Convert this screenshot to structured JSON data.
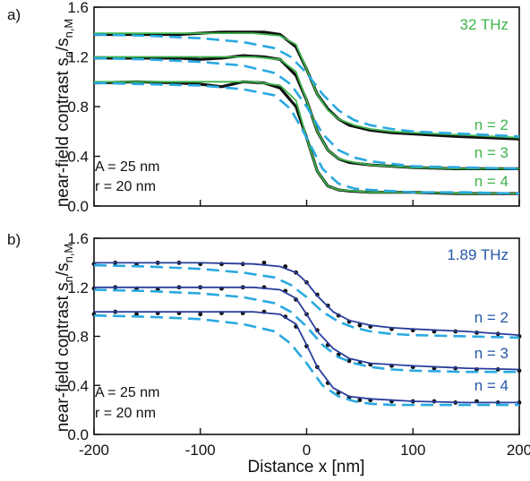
{
  "colors": {
    "panel_a_accent": "#3db54a",
    "panel_b_accent": "#2557a7",
    "dashed_model": "#29a9e0",
    "solid_model_a": "#3db54a",
    "solid_model_b": "#2a3d9a",
    "data_points": "#111111"
  },
  "chart_data": [
    {
      "type": "line",
      "panel_label": "a)",
      "ylabel": "near-field contrast s",
      "ylabel_sub1": "n",
      "ylabel_mid": "/s",
      "ylabel_sub2": "n,M",
      "xlabel": "",
      "xlim": [
        -200,
        200
      ],
      "ylim": [
        0.0,
        1.6
      ],
      "yticks": [
        0.0,
        0.4,
        0.8,
        1.2,
        1.6
      ],
      "ytick_labels": [
        "0.0",
        "0.4",
        "0.8",
        "1.2",
        "1.6"
      ],
      "xticks": [
        -200,
        -100,
        0,
        100,
        200
      ],
      "xtick_labels": [
        "",
        "",
        "",
        "",
        ""
      ],
      "frequency_label": "32 THz",
      "annotations": [
        "A = 25 nm",
        "r = 20 nm"
      ],
      "grid": false,
      "markers": "dense line-like measurement trace",
      "series": [
        {
          "name": "n = 2",
          "data": {
            "x": [
              -200,
              -160,
              -120,
              -100,
              -80,
              -60,
              -40,
              -25,
              -10,
              0,
              10,
              20,
              30,
              40,
              60,
              80,
              100,
              140,
              200
            ],
            "y": [
              1.38,
              1.38,
              1.38,
              1.39,
              1.4,
              1.4,
              1.4,
              1.38,
              1.28,
              1.1,
              0.9,
              0.78,
              0.7,
              0.65,
              0.61,
              0.59,
              0.58,
              0.56,
              0.54
            ]
          },
          "model_solid": {
            "x": [
              -200,
              -100,
              -50,
              -25,
              -10,
              0,
              10,
              20,
              30,
              45,
              60,
              80,
              100,
              150,
              200
            ],
            "y": [
              1.39,
              1.39,
              1.39,
              1.37,
              1.3,
              1.1,
              0.9,
              0.77,
              0.7,
              0.65,
              0.62,
              0.6,
              0.59,
              0.57,
              0.55
            ]
          },
          "model_dashed": {
            "x": [
              -200,
              -150,
              -100,
              -60,
              -30,
              -15,
              0,
              15,
              30,
              45,
              60,
              80,
              100,
              150,
              200
            ],
            "y": [
              1.38,
              1.37,
              1.35,
              1.32,
              1.27,
              1.2,
              1.07,
              0.9,
              0.77,
              0.69,
              0.65,
              0.62,
              0.6,
              0.58,
              0.56
            ]
          }
        },
        {
          "name": "n = 3",
          "data": {
            "x": [
              -200,
              -160,
              -120,
              -100,
              -80,
              -60,
              -40,
              -25,
              -10,
              0,
              10,
              20,
              30,
              40,
              60,
              80,
              100,
              140,
              200
            ],
            "y": [
              1.19,
              1.19,
              1.19,
              1.18,
              1.19,
              1.21,
              1.2,
              1.18,
              1.05,
              0.85,
              0.6,
              0.45,
              0.38,
              0.35,
              0.33,
              0.32,
              0.31,
              0.3,
              0.3
            ]
          },
          "model_solid": {
            "x": [
              -200,
              -100,
              -50,
              -25,
              -10,
              0,
              10,
              20,
              30,
              45,
              60,
              80,
              100,
              150,
              200
            ],
            "y": [
              1.2,
              1.2,
              1.2,
              1.18,
              1.08,
              0.85,
              0.6,
              0.45,
              0.38,
              0.35,
              0.33,
              0.32,
              0.31,
              0.3,
              0.3
            ]
          },
          "model_dashed": {
            "x": [
              -200,
              -150,
              -100,
              -60,
              -30,
              -15,
              0,
              15,
              30,
              45,
              60,
              80,
              100,
              150,
              200
            ],
            "y": [
              1.19,
              1.18,
              1.16,
              1.13,
              1.07,
              0.98,
              0.8,
              0.58,
              0.45,
              0.39,
              0.36,
              0.34,
              0.32,
              0.31,
              0.3
            ]
          }
        },
        {
          "name": "n = 4",
          "data": {
            "x": [
              -200,
              -160,
              -120,
              -100,
              -80,
              -60,
              -40,
              -25,
              -10,
              0,
              10,
              20,
              30,
              40,
              60,
              80,
              100,
              140,
              200
            ],
            "y": [
              0.99,
              1.0,
              0.99,
              0.98,
              0.96,
              1.0,
              0.99,
              0.95,
              0.8,
              0.55,
              0.28,
              0.16,
              0.13,
              0.12,
              0.11,
              0.11,
              0.11,
              0.1,
              0.1
            ]
          },
          "model_solid": {
            "x": [
              -200,
              -100,
              -50,
              -25,
              -10,
              0,
              10,
              20,
              30,
              45,
              60,
              80,
              100,
              150,
              200
            ],
            "y": [
              1.0,
              1.0,
              1.0,
              0.97,
              0.85,
              0.55,
              0.28,
              0.16,
              0.13,
              0.12,
              0.11,
              0.11,
              0.11,
              0.1,
              0.1
            ]
          },
          "model_dashed": {
            "x": [
              -200,
              -150,
              -100,
              -60,
              -30,
              -15,
              0,
              15,
              30,
              45,
              60,
              80,
              100,
              150,
              200
            ],
            "y": [
              0.99,
              0.98,
              0.97,
              0.94,
              0.89,
              0.78,
              0.55,
              0.3,
              0.18,
              0.14,
              0.13,
              0.12,
              0.11,
              0.11,
              0.1
            ]
          }
        }
      ]
    },
    {
      "type": "scatter",
      "panel_label": "b)",
      "ylabel": "near-field contrast s",
      "ylabel_sub1": "n",
      "ylabel_mid": "/s",
      "ylabel_sub2": "n,M",
      "xlabel": "Distance x  [nm]",
      "xlim": [
        -200,
        200
      ],
      "ylim": [
        0.0,
        1.6
      ],
      "yticks": [
        0.0,
        0.4,
        0.8,
        1.2,
        1.6
      ],
      "ytick_labels": [
        "0.0",
        "0.4",
        "0.8",
        "1.2",
        "1.6"
      ],
      "xticks": [
        -200,
        -100,
        0,
        100,
        200
      ],
      "xtick_labels": [
        "-200",
        "-100",
        "0",
        "100",
        "200"
      ],
      "frequency_label": "1.89 THz",
      "annotations": [
        "A = 25 nm",
        "r = 20 nm"
      ],
      "grid": false,
      "markers": "dots",
      "series": [
        {
          "name": "n = 2",
          "data": {
            "x": [
              -200,
              -180,
              -160,
              -140,
              -120,
              -100,
              -80,
              -60,
              -40,
              -20,
              -10,
              0,
              10,
              20,
              30,
              40,
              50,
              60,
              80,
              100,
              120,
              140,
              160,
              180,
              200
            ],
            "y": [
              1.39,
              1.4,
              1.39,
              1.4,
              1.4,
              1.39,
              1.39,
              1.39,
              1.4,
              1.37,
              1.32,
              1.24,
              1.14,
              1.05,
              0.97,
              0.92,
              0.89,
              0.88,
              0.86,
              0.85,
              0.84,
              0.84,
              0.83,
              0.82,
              0.8
            ]
          },
          "model_solid": {
            "x": [
              -200,
              -100,
              -50,
              -25,
              -10,
              0,
              10,
              25,
              40,
              60,
              80,
              100,
              150,
              200
            ],
            "y": [
              1.4,
              1.4,
              1.39,
              1.37,
              1.32,
              1.24,
              1.13,
              1.0,
              0.93,
              0.89,
              0.87,
              0.86,
              0.84,
              0.81
            ]
          },
          "model_dashed": {
            "x": [
              -200,
              -150,
              -100,
              -60,
              -30,
              -15,
              0,
              15,
              30,
              45,
              60,
              80,
              100,
              150,
              200
            ],
            "y": [
              1.38,
              1.37,
              1.35,
              1.32,
              1.28,
              1.22,
              1.12,
              1.0,
              0.92,
              0.87,
              0.84,
              0.82,
              0.81,
              0.8,
              0.79
            ]
          }
        },
        {
          "name": "n = 3",
          "data": {
            "x": [
              -200,
              -180,
              -160,
              -140,
              -120,
              -100,
              -80,
              -60,
              -40,
              -20,
              -10,
              0,
              10,
              20,
              30,
              40,
              50,
              60,
              80,
              100,
              120,
              140,
              160,
              180,
              200
            ],
            "y": [
              1.19,
              1.2,
              1.19,
              1.18,
              1.2,
              1.2,
              1.19,
              1.2,
              1.2,
              1.17,
              1.1,
              0.98,
              0.85,
              0.73,
              0.65,
              0.6,
              0.58,
              0.57,
              0.56,
              0.55,
              0.54,
              0.54,
              0.53,
              0.53,
              0.52
            ]
          },
          "model_solid": {
            "x": [
              -200,
              -100,
              -50,
              -25,
              -10,
              0,
              10,
              25,
              40,
              60,
              80,
              100,
              150,
              200
            ],
            "y": [
              1.2,
              1.2,
              1.2,
              1.18,
              1.11,
              0.98,
              0.84,
              0.7,
              0.62,
              0.58,
              0.57,
              0.56,
              0.54,
              0.53
            ]
          },
          "model_dashed": {
            "x": [
              -200,
              -150,
              -100,
              -60,
              -30,
              -15,
              0,
              15,
              30,
              45,
              60,
              80,
              100,
              150,
              200
            ],
            "y": [
              1.18,
              1.17,
              1.15,
              1.12,
              1.07,
              1.0,
              0.88,
              0.73,
              0.63,
              0.58,
              0.55,
              0.53,
              0.52,
              0.51,
              0.51
            ]
          }
        },
        {
          "name": "n = 4",
          "data": {
            "x": [
              -200,
              -180,
              -160,
              -140,
              -120,
              -100,
              -80,
              -60,
              -40,
              -20,
              -10,
              0,
              10,
              20,
              30,
              40,
              50,
              60,
              80,
              100,
              120,
              140,
              160,
              180,
              200
            ],
            "y": [
              0.98,
              1.0,
              0.98,
              0.99,
              0.99,
              0.98,
              0.99,
              0.99,
              1.0,
              0.96,
              0.88,
              0.72,
              0.55,
              0.42,
              0.34,
              0.3,
              0.28,
              0.28,
              0.27,
              0.27,
              0.27,
              0.26,
              0.27,
              0.26,
              0.26
            ]
          },
          "model_solid": {
            "x": [
              -200,
              -100,
              -50,
              -25,
              -10,
              0,
              10,
              25,
              40,
              60,
              80,
              100,
              150,
              200
            ],
            "y": [
              1.0,
              1.0,
              1.0,
              0.98,
              0.9,
              0.73,
              0.55,
              0.38,
              0.31,
              0.29,
              0.28,
              0.27,
              0.26,
              0.26
            ]
          },
          "model_dashed": {
            "x": [
              -200,
              -150,
              -100,
              -60,
              -30,
              -15,
              0,
              15,
              30,
              45,
              60,
              80,
              100,
              150,
              200
            ],
            "y": [
              0.97,
              0.96,
              0.94,
              0.9,
              0.84,
              0.74,
              0.58,
              0.4,
              0.31,
              0.27,
              0.25,
              0.24,
              0.24,
              0.24,
              0.24
            ]
          }
        }
      ]
    }
  ]
}
